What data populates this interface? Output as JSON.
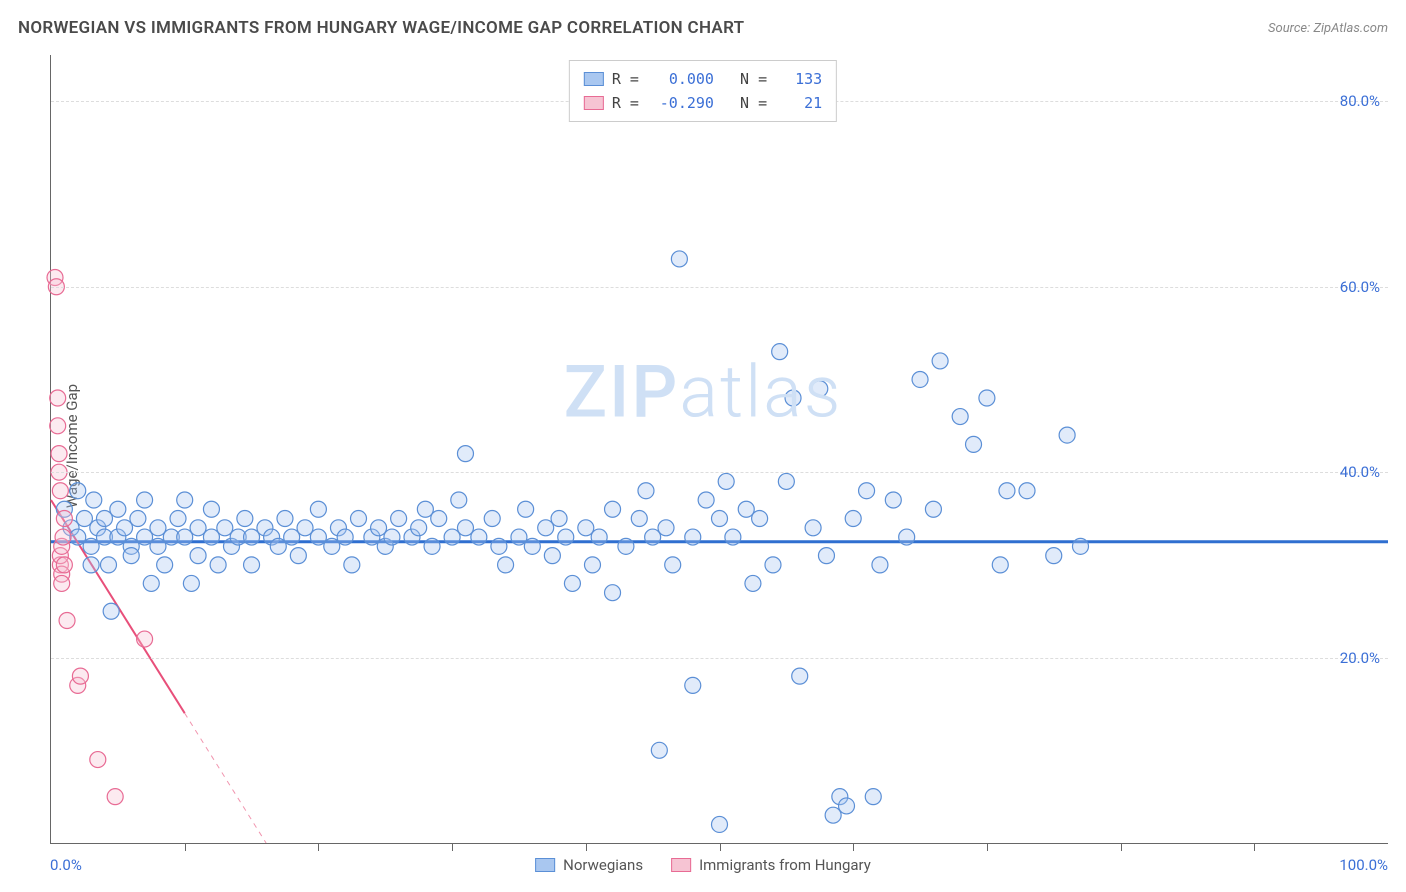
{
  "header": {
    "title": "NORWEGIAN VS IMMIGRANTS FROM HUNGARY WAGE/INCOME GAP CORRELATION CHART",
    "source_prefix": "Source: ",
    "source_name": "ZipAtlas.com"
  },
  "chart": {
    "type": "scatter",
    "ylabel": "Wage/Income Gap",
    "xlim": [
      0,
      100
    ],
    "ylim": [
      0,
      85
    ],
    "xtick_step": 10,
    "ytick_step": 20,
    "ytick_labels": [
      "20.0%",
      "40.0%",
      "60.0%",
      "80.0%"
    ],
    "xlabel_min": "0.0%",
    "xlabel_max": "100.0%",
    "background_color": "#ffffff",
    "grid_color": "#dddddd",
    "axis_color": "#666666",
    "tick_label_color": "#3b6fd6",
    "marker_radius": 8,
    "marker_fill_opacity": 0.35,
    "marker_stroke_width": 1.2,
    "series": [
      {
        "id": "norwegians",
        "label": "Norwegians",
        "color_fill": "#a9c7f0",
        "color_stroke": "#5b8fd6",
        "r": "0.000",
        "n": "133",
        "trend": {
          "y_intercept": 32.5,
          "slope": 0.0,
          "color": "#2f6fd0",
          "width": 3
        },
        "points": [
          [
            1,
            36
          ],
          [
            1.5,
            34
          ],
          [
            2,
            33
          ],
          [
            2,
            38
          ],
          [
            2.5,
            35
          ],
          [
            3,
            32
          ],
          [
            3,
            30
          ],
          [
            3.2,
            37
          ],
          [
            3.5,
            34
          ],
          [
            4,
            33
          ],
          [
            4,
            35
          ],
          [
            4.3,
            30
          ],
          [
            4.5,
            25
          ],
          [
            5,
            33
          ],
          [
            5,
            36
          ],
          [
            5.5,
            34
          ],
          [
            6,
            32
          ],
          [
            6,
            31
          ],
          [
            6.5,
            35
          ],
          [
            7,
            33
          ],
          [
            7,
            37
          ],
          [
            7.5,
            28
          ],
          [
            8,
            34
          ],
          [
            8,
            32
          ],
          [
            8.5,
            30
          ],
          [
            9,
            33
          ],
          [
            9.5,
            35
          ],
          [
            10,
            33
          ],
          [
            10,
            37
          ],
          [
            10.5,
            28
          ],
          [
            11,
            34
          ],
          [
            11,
            31
          ],
          [
            12,
            33
          ],
          [
            12,
            36
          ],
          [
            12.5,
            30
          ],
          [
            13,
            34
          ],
          [
            13.5,
            32
          ],
          [
            14,
            33
          ],
          [
            14.5,
            35
          ],
          [
            15,
            33
          ],
          [
            15,
            30
          ],
          [
            16,
            34
          ],
          [
            16.5,
            33
          ],
          [
            17,
            32
          ],
          [
            17.5,
            35
          ],
          [
            18,
            33
          ],
          [
            18.5,
            31
          ],
          [
            19,
            34
          ],
          [
            20,
            33
          ],
          [
            20,
            36
          ],
          [
            21,
            32
          ],
          [
            21.5,
            34
          ],
          [
            22,
            33
          ],
          [
            22.5,
            30
          ],
          [
            23,
            35
          ],
          [
            24,
            33
          ],
          [
            24.5,
            34
          ],
          [
            25,
            32
          ],
          [
            25.5,
            33
          ],
          [
            26,
            35
          ],
          [
            27,
            33
          ],
          [
            27.5,
            34
          ],
          [
            28,
            36
          ],
          [
            28.5,
            32
          ],
          [
            29,
            35
          ],
          [
            30,
            33
          ],
          [
            30.5,
            37
          ],
          [
            31,
            34
          ],
          [
            31,
            42
          ],
          [
            32,
            33
          ],
          [
            33,
            35
          ],
          [
            33.5,
            32
          ],
          [
            34,
            30
          ],
          [
            35,
            33
          ],
          [
            35.5,
            36
          ],
          [
            36,
            32
          ],
          [
            37,
            34
          ],
          [
            37.5,
            31
          ],
          [
            38,
            35
          ],
          [
            38.5,
            33
          ],
          [
            39,
            28
          ],
          [
            40,
            34
          ],
          [
            40.5,
            30
          ],
          [
            41,
            33
          ],
          [
            42,
            36
          ],
          [
            42,
            27
          ],
          [
            43,
            32
          ],
          [
            44,
            35
          ],
          [
            44.5,
            38
          ],
          [
            45,
            33
          ],
          [
            45.5,
            10
          ],
          [
            46,
            34
          ],
          [
            46.5,
            30
          ],
          [
            47,
            63
          ],
          [
            48,
            33
          ],
          [
            48,
            17
          ],
          [
            49,
            37
          ],
          [
            50,
            35
          ],
          [
            50,
            2
          ],
          [
            50.5,
            39
          ],
          [
            51,
            33
          ],
          [
            52,
            36
          ],
          [
            52.5,
            28
          ],
          [
            53,
            35
          ],
          [
            54,
            30
          ],
          [
            54.5,
            53
          ],
          [
            55,
            39
          ],
          [
            55.5,
            48
          ],
          [
            56,
            18
          ],
          [
            57,
            34
          ],
          [
            57.5,
            49
          ],
          [
            58,
            31
          ],
          [
            58.5,
            3
          ],
          [
            59,
            5
          ],
          [
            59.5,
            4
          ],
          [
            60,
            35
          ],
          [
            61,
            38
          ],
          [
            61.5,
            5
          ],
          [
            62,
            30
          ],
          [
            63,
            37
          ],
          [
            64,
            33
          ],
          [
            65,
            50
          ],
          [
            66,
            36
          ],
          [
            66.5,
            52
          ],
          [
            68,
            46
          ],
          [
            69,
            43
          ],
          [
            70,
            48
          ],
          [
            71,
            30
          ],
          [
            71.5,
            38
          ],
          [
            73,
            38
          ],
          [
            75,
            31
          ],
          [
            76,
            44
          ],
          [
            77,
            32
          ]
        ]
      },
      {
        "id": "immigrants",
        "label": "Immigrants from Hungary",
        "color_fill": "#f6c4d3",
        "color_stroke": "#e86b94",
        "r": "-0.290",
        "n": "21",
        "trend": {
          "y_intercept": 37,
          "slope": -2.3,
          "color": "#e84f7a",
          "width": 2,
          "dash_after_x": 10
        },
        "points": [
          [
            0.3,
            61
          ],
          [
            0.4,
            60
          ],
          [
            0.5,
            48
          ],
          [
            0.5,
            45
          ],
          [
            0.6,
            42
          ],
          [
            0.6,
            40
          ],
          [
            0.7,
            38
          ],
          [
            0.7,
            30
          ],
          [
            0.7,
            31
          ],
          [
            0.8,
            32
          ],
          [
            0.8,
            29
          ],
          [
            0.8,
            28
          ],
          [
            0.9,
            33
          ],
          [
            1.0,
            35
          ],
          [
            1.0,
            30
          ],
          [
            1.2,
            24
          ],
          [
            2.0,
            17
          ],
          [
            2.2,
            18
          ],
          [
            3.5,
            9
          ],
          [
            4.8,
            5
          ],
          [
            7.0,
            22
          ]
        ]
      }
    ],
    "bottom_legend": [
      {
        "label": "Norwegians",
        "fill": "#a9c7f0",
        "stroke": "#5b8fd6"
      },
      {
        "label": "Immigrants from Hungary",
        "fill": "#f6c4d3",
        "stroke": "#e86b94"
      }
    ],
    "watermark": {
      "text_bold": "ZIP",
      "text_light": "atlas",
      "color": "#cfe0f5"
    }
  }
}
